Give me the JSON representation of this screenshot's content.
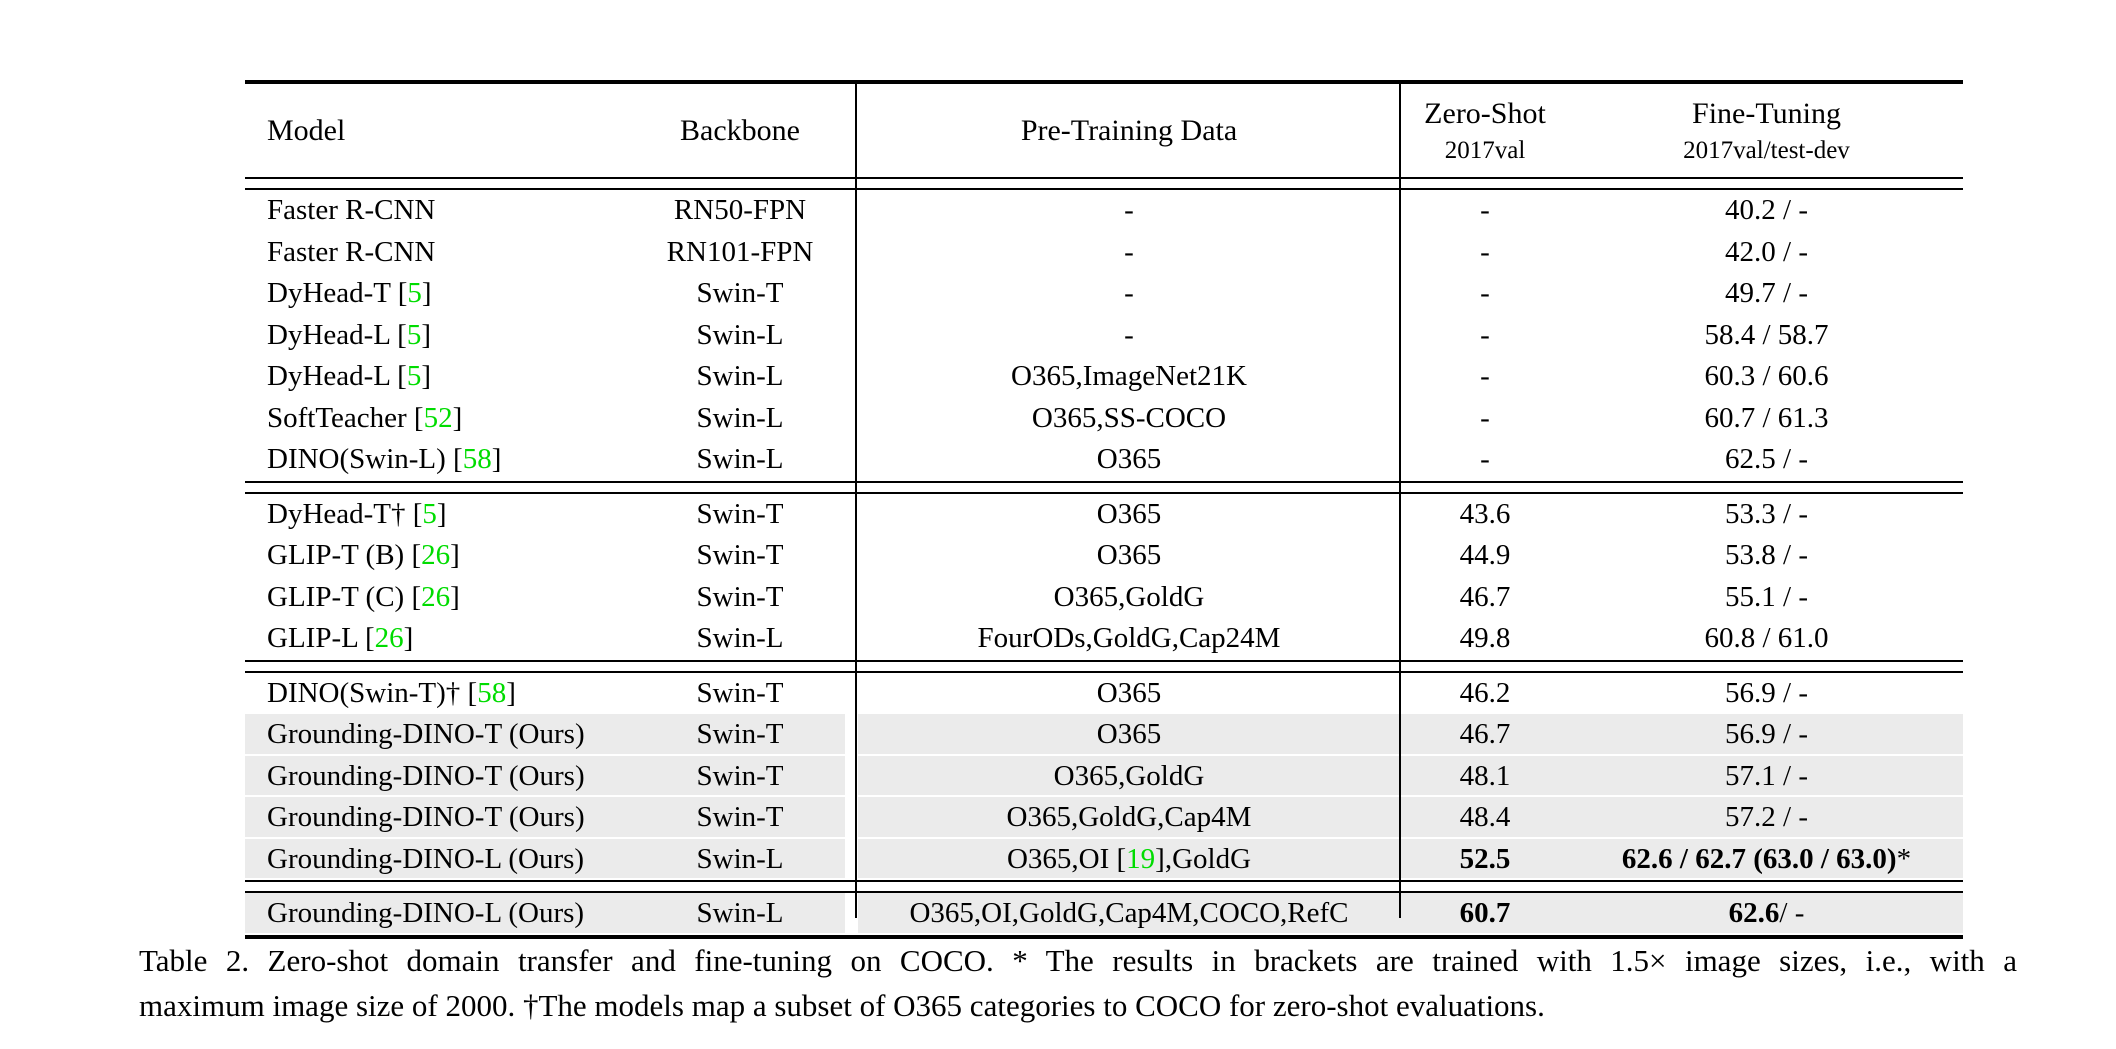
{
  "colors": {
    "citation": "#00DC00",
    "highlight": "#EBEBEB",
    "rule": "#000000"
  },
  "header": {
    "model": "Model",
    "backbone": "Backbone",
    "pretrain": "Pre-Training Data",
    "zeroshot_line1": "Zero-Shot",
    "zeroshot_line2": "2017val",
    "finetune_line1": "Fine-Tuning",
    "finetune_line2": "2017val/test-dev"
  },
  "groups": [
    {
      "rows": [
        {
          "highlight": false,
          "model": "Faster R-CNN",
          "backbone": "RN50-FPN",
          "pretrain": "-",
          "zeroshot": "-",
          "finetune": "40.2 / -"
        },
        {
          "highlight": false,
          "model": "Faster R-CNN",
          "backbone": "RN101-FPN",
          "pretrain": "-",
          "zeroshot": "-",
          "finetune": "42.0 / -"
        },
        {
          "highlight": false,
          "model": [
            {
              "t": "DyHead-T ["
            },
            {
              "t": "5",
              "green": true
            },
            {
              "t": "]"
            }
          ],
          "backbone": "Swin-T",
          "pretrain": "-",
          "zeroshot": "-",
          "finetune": "49.7 / -"
        },
        {
          "highlight": false,
          "model": [
            {
              "t": "DyHead-L ["
            },
            {
              "t": "5",
              "green": true
            },
            {
              "t": "]"
            }
          ],
          "backbone": "Swin-L",
          "pretrain": "-",
          "zeroshot": "-",
          "finetune": "58.4 / 58.7"
        },
        {
          "highlight": false,
          "model": [
            {
              "t": "DyHead-L ["
            },
            {
              "t": "5",
              "green": true
            },
            {
              "t": "]"
            }
          ],
          "backbone": "Swin-L",
          "pretrain": "O365,ImageNet21K",
          "zeroshot": "-",
          "finetune": "60.3 / 60.6"
        },
        {
          "highlight": false,
          "model": [
            {
              "t": "SoftTeacher ["
            },
            {
              "t": "52",
              "green": true
            },
            {
              "t": "]"
            }
          ],
          "backbone": "Swin-L",
          "pretrain": "O365,SS-COCO",
          "zeroshot": "-",
          "finetune": "60.7 / 61.3"
        },
        {
          "highlight": false,
          "model": [
            {
              "t": "DINO(Swin-L) ["
            },
            {
              "t": "58",
              "green": true
            },
            {
              "t": "]"
            }
          ],
          "backbone": "Swin-L",
          "pretrain": "O365",
          "zeroshot": "-",
          "finetune": "62.5 / -"
        }
      ]
    },
    {
      "rows": [
        {
          "highlight": false,
          "model": [
            {
              "t": "DyHead-T† ["
            },
            {
              "t": "5",
              "green": true
            },
            {
              "t": "]"
            }
          ],
          "backbone": "Swin-T",
          "pretrain": "O365",
          "zeroshot": "43.6",
          "finetune": "53.3 / -"
        },
        {
          "highlight": false,
          "model": [
            {
              "t": "GLIP-T (B) ["
            },
            {
              "t": "26",
              "green": true
            },
            {
              "t": "]"
            }
          ],
          "backbone": "Swin-T",
          "pretrain": "O365",
          "zeroshot": "44.9",
          "finetune": "53.8 / -"
        },
        {
          "highlight": false,
          "model": [
            {
              "t": "GLIP-T (C) ["
            },
            {
              "t": "26",
              "green": true
            },
            {
              "t": "]"
            }
          ],
          "backbone": "Swin-T",
          "pretrain": "O365,GoldG",
          "zeroshot": "46.7",
          "finetune": "55.1 / -"
        },
        {
          "highlight": false,
          "model": [
            {
              "t": "GLIP-L ["
            },
            {
              "t": "26",
              "green": true
            },
            {
              "t": "]"
            }
          ],
          "backbone": "Swin-L",
          "pretrain": "FourODs,GoldG,Cap24M",
          "zeroshot": "49.8",
          "finetune": "60.8 / 61.0"
        }
      ]
    },
    {
      "rows": [
        {
          "highlight": false,
          "model": [
            {
              "t": "DINO(Swin-T)† ["
            },
            {
              "t": "58",
              "green": true
            },
            {
              "t": "]"
            }
          ],
          "backbone": "Swin-T",
          "pretrain": "O365",
          "zeroshot": "46.2",
          "finetune": "56.9 / -"
        },
        {
          "highlight": true,
          "model": "Grounding-DINO-T (Ours)",
          "backbone": "Swin-T",
          "pretrain": "O365",
          "zeroshot": "46.7",
          "finetune": "56.9 / -"
        },
        {
          "highlight": true,
          "model": "Grounding-DINO-T (Ours)",
          "backbone": "Swin-T",
          "pretrain": "O365,GoldG",
          "zeroshot": "48.1",
          "finetune": "57.1 / -"
        },
        {
          "highlight": true,
          "model": "Grounding-DINO-T (Ours)",
          "backbone": "Swin-T",
          "pretrain": "O365,GoldG,Cap4M",
          "zeroshot": "48.4",
          "finetune": "57.2 / -"
        },
        {
          "highlight": true,
          "model": "Grounding-DINO-L (Ours)",
          "backbone": "Swin-L",
          "pretrain": [
            {
              "t": "O365,OI ["
            },
            {
              "t": "19",
              "green": true
            },
            {
              "t": "],GoldG"
            }
          ],
          "zeroshot": [
            {
              "t": "52.5",
              "bold": true
            }
          ],
          "finetune": [
            {
              "t": "62.6 / 62.7 (63.0 / 63.0)",
              "bold": true
            },
            {
              "t": "*"
            }
          ]
        }
      ]
    },
    {
      "rows": [
        {
          "highlight": true,
          "model": "Grounding-DINO-L (Ours)",
          "backbone": "Swin-L",
          "pretrain": "O365,OI,GoldG,Cap4M,COCO,RefC",
          "zeroshot": [
            {
              "t": "60.7",
              "bold": true
            }
          ],
          "finetune": [
            {
              "t": "62.6",
              "bold": true
            },
            {
              "t": " / -"
            }
          ]
        }
      ]
    }
  ],
  "caption": {
    "line1": "Table 2.  Zero-shot domain transfer and fine-tuning on COCO. * The results in brackets are trained with 1.5× image sizes, i.e., with a",
    "line2": "maximum image size of 2000. †The models map a subset of O365 categories to COCO for zero-shot evaluations."
  }
}
